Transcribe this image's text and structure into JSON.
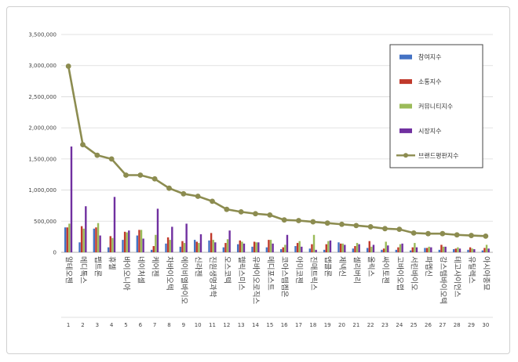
{
  "chart_data": {
    "type": "bar",
    "title": "",
    "xlabel": "",
    "ylabel": "",
    "ylim": [
      0,
      3500000
    ],
    "yticks": [
      "0",
      "500,000",
      "1,000,000",
      "1,500,000",
      "2,000,000",
      "2,500,000",
      "3,000,000",
      "3,500,000"
    ],
    "grid": true,
    "legend_position": "top-right",
    "ranks": [
      "1",
      "2",
      "3",
      "4",
      "5",
      "6",
      "7",
      "8",
      "9",
      "10",
      "11",
      "12",
      "13",
      "14",
      "15",
      "16",
      "17",
      "18",
      "19",
      "20",
      "21",
      "22",
      "23",
      "24",
      "25",
      "26",
      "27",
      "28",
      "29",
      "30"
    ],
    "categories": [
      "알테오젠",
      "메디톡스",
      "펩트론",
      "휴젤",
      "바이오니아",
      "네이처셀",
      "케어젠",
      "차바이오텍",
      "에이비엘바이오",
      "신라젠",
      "진원생명과학",
      "오스코텍",
      "헬릭스미스",
      "유바이오로직스",
      "메디포스트",
      "코아스템켐온",
      "아미코젠",
      "진매트릭스",
      "앱클론",
      "제넥신",
      "셀리버리",
      "올릭스",
      "싸이토젠",
      "고바이오랩",
      "서린바이오",
      "파멥신",
      "강스템바이오텍",
      "테고사이언스",
      "유틸렉스",
      "아시아종묘"
    ],
    "series": [
      {
        "name": "참여지수",
        "color": "#4472c4",
        "kind": "bar",
        "values": [
          400000,
          160000,
          380000,
          80000,
          200000,
          270000,
          40000,
          140000,
          90000,
          200000,
          190000,
          80000,
          130000,
          90000,
          80000,
          50000,
          100000,
          60000,
          40000,
          160000,
          60000,
          70000,
          40000,
          40000,
          30000,
          70000,
          40000,
          50000,
          40000,
          30000
        ]
      },
      {
        "name": "소통지수",
        "color": "#c0392b",
        "kind": "bar",
        "values": [
          400000,
          420000,
          400000,
          260000,
          330000,
          360000,
          100000,
          240000,
          180000,
          170000,
          310000,
          150000,
          190000,
          170000,
          200000,
          80000,
          150000,
          130000,
          130000,
          140000,
          100000,
          180000,
          60000,
          80000,
          80000,
          70000,
          120000,
          60000,
          80000,
          70000
        ]
      },
      {
        "name": "커뮤니티지수",
        "color": "#9bbb59",
        "kind": "bar",
        "values": [
          460000,
          380000,
          470000,
          230000,
          320000,
          360000,
          280000,
          200000,
          150000,
          150000,
          200000,
          210000,
          170000,
          160000,
          200000,
          120000,
          180000,
          280000,
          180000,
          140000,
          150000,
          90000,
          170000,
          130000,
          150000,
          90000,
          90000,
          80000,
          60000,
          120000
        ]
      },
      {
        "name": "시장지수",
        "color": "#7030a0",
        "kind": "bar",
        "values": [
          1700000,
          740000,
          270000,
          890000,
          350000,
          220000,
          700000,
          410000,
          460000,
          290000,
          160000,
          350000,
          140000,
          160000,
          140000,
          280000,
          90000,
          40000,
          190000,
          120000,
          130000,
          120000,
          110000,
          140000,
          80000,
          80000,
          90000,
          60000,
          50000,
          60000
        ]
      },
      {
        "name": "브랜드평판지수",
        "color": "#8c8c50",
        "kind": "line",
        "values": [
          2990000,
          1730000,
          1560000,
          1500000,
          1240000,
          1240000,
          1180000,
          1030000,
          940000,
          900000,
          820000,
          690000,
          650000,
          620000,
          600000,
          520000,
          510000,
          490000,
          470000,
          450000,
          430000,
          410000,
          380000,
          370000,
          310000,
          300000,
          300000,
          280000,
          270000,
          260000
        ]
      }
    ]
  }
}
